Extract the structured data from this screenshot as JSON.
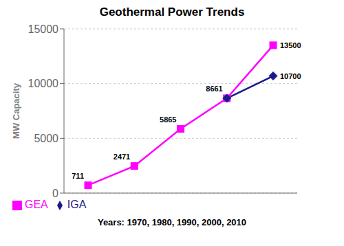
{
  "chart_data": {
    "type": "line",
    "title": "Geothermal Power Trends",
    "ylabel": "MW Capacity",
    "xlabel": "Years: 1970, 1980, 1990, 2000, 2010",
    "categories": [
      null,
      null,
      null,
      null,
      null
    ],
    "series": [
      {
        "name": "GEA",
        "color": "#FF00FF",
        "marker": "square",
        "data_labels": true,
        "values": [
          711,
          2471,
          5865,
          8661,
          13500
        ]
      },
      {
        "name": "IGA",
        "color": "#1a1a8c",
        "marker": "diamond",
        "data_labels": false,
        "values": [
          null,
          null,
          null,
          8661,
          10700
        ]
      }
    ],
    "annotations": [
      {
        "text": "10700",
        "x": 4,
        "y": 10700
      }
    ],
    "ylim": [
      0,
      15000
    ],
    "yticks": [
      0,
      5000,
      10000,
      15000
    ],
    "grid": true,
    "legend": "bottom",
    "tick_labels": "y"
  }
}
